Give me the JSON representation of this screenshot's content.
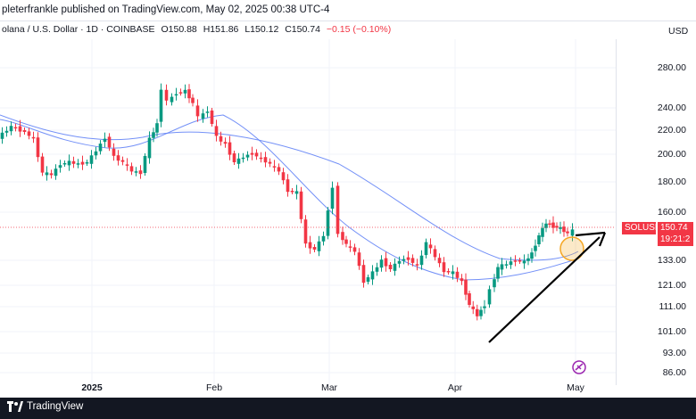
{
  "header": {
    "publisher_text": "pleterfrankle published on TradingView.com, May 02, 2025 00:38 UTC-4"
  },
  "legend": {
    "symbol": "olana / U.S. Dollar · 1D · COINBASE",
    "open": "O150.88",
    "high": "H151.86",
    "low": "L150.12",
    "close": "C150.74",
    "change": "−0.15 (−0.10%)"
  },
  "axis": {
    "currency": "USD",
    "price_labels": [
      "280.00",
      "240.00",
      "220.00",
      "200.00",
      "180.00",
      "160.00",
      "133.00",
      "121.00",
      "111.00",
      "101.00",
      "93.00",
      "86.00"
    ],
    "time_labels": [
      "2025",
      "Feb",
      "Mar",
      "Apr",
      "May"
    ]
  },
  "price_tag": {
    "symbol": "SOLUSD",
    "price": "150.74",
    "countdown": "19:21:2"
  },
  "footer": {
    "brand": "TradingView"
  },
  "colors": {
    "up": "#089981",
    "down": "#f23645",
    "ma": "#5b7cf6",
    "trend": "#000000",
    "highlight": "#f5a623"
  },
  "icons": [
    "tradingview-logo-icon",
    "chart-settings-icon"
  ]
}
